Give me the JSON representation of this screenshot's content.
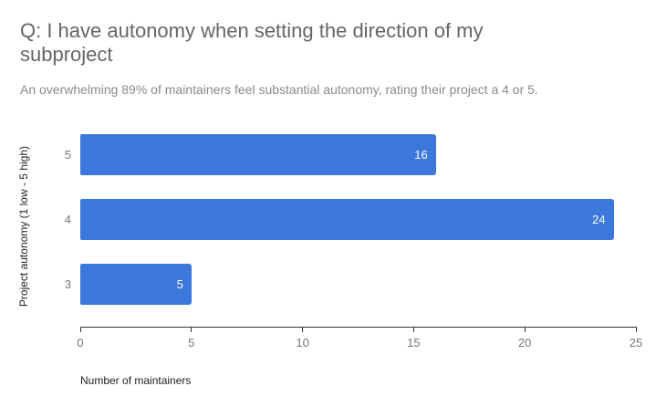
{
  "chart_data": {
    "type": "bar",
    "orientation": "horizontal",
    "title": "Q: I have autonomy when setting the direction of my subproject",
    "subtitle": "An overwhelming 89% of maintainers feel substantial autonomy, rating their project a 4 or 5.",
    "categories": [
      "5",
      "4",
      "3"
    ],
    "values": [
      16,
      24,
      5
    ],
    "xlabel": "Number of maintainers",
    "ylabel": "Project autonomy (1 low - 5 high)",
    "xlim": [
      0,
      25
    ],
    "xticks": [
      0,
      5,
      10,
      15,
      20,
      25
    ],
    "grid": false,
    "legend": "none",
    "colors": {
      "bar": "#3c78dc",
      "value_label": "#ffffff",
      "title": "#666666",
      "subtitle": "#8a8a8a",
      "tick_label": "#757575",
      "axis_title": "#222222",
      "axis_line": "#333333"
    }
  }
}
